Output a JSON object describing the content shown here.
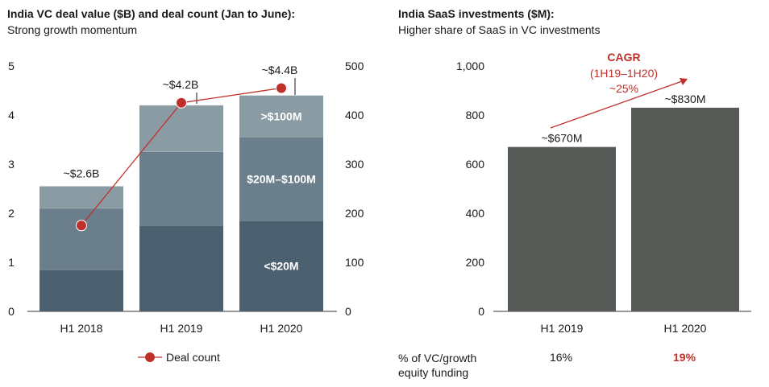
{
  "left": {
    "title": "India VC deal value ($B) and deal count (Jan to June):",
    "subtitle": "Strong growth momentum",
    "legend_label": "Deal count"
  },
  "right": {
    "title": "India SaaS investments ($M):",
    "subtitle": "Higher share of SaaS in VC investments",
    "cagr_title": "CAGR",
    "cagr_period": "(1H19–1H20)",
    "cagr_value": "~25%",
    "share_label": "% of VC/growth equity funding",
    "shares": [
      "16%",
      "19%"
    ]
  },
  "colors": {
    "seg_small": "#4b6170",
    "seg_mid": "#6a7f8b",
    "seg_large": "#8b9ba4",
    "deal_count": "#c0302b",
    "saas_bar": "#575b57",
    "accent_red": "#c0302b"
  },
  "chart_data": [
    {
      "type": "bar",
      "stacked": true,
      "categories": [
        "H1 2018",
        "H1 2019",
        "H1 2020"
      ],
      "series": [
        {
          "name": "<$20M",
          "values": [
            0.85,
            1.75,
            1.85
          ]
        },
        {
          "name": "$20M–$100M",
          "values": [
            1.25,
            1.5,
            1.7
          ]
        },
        {
          "name": ">$100M",
          "values": [
            0.45,
            0.95,
            0.85
          ]
        }
      ],
      "totals_labels": [
        "~$2.6B",
        "~$4.2B",
        "~$4.4B"
      ],
      "ylim": [
        0,
        5
      ],
      "yticks": [
        "0",
        "1",
        "2",
        "3",
        "4",
        "5"
      ],
      "line": {
        "name": "Deal count",
        "values": [
          175,
          425,
          455
        ],
        "ylim": [
          0,
          500
        ],
        "yticks": [
          "0",
          "100",
          "200",
          "300",
          "400",
          "500"
        ]
      }
    },
    {
      "type": "bar",
      "categories": [
        "H1 2019",
        "H1 2020"
      ],
      "values": [
        670,
        830
      ],
      "value_labels": [
        "~$670M",
        "~$830M"
      ],
      "ylim": [
        0,
        1000
      ],
      "yticks": [
        "0",
        "200",
        "400",
        "600",
        "800",
        "1,000"
      ]
    }
  ]
}
